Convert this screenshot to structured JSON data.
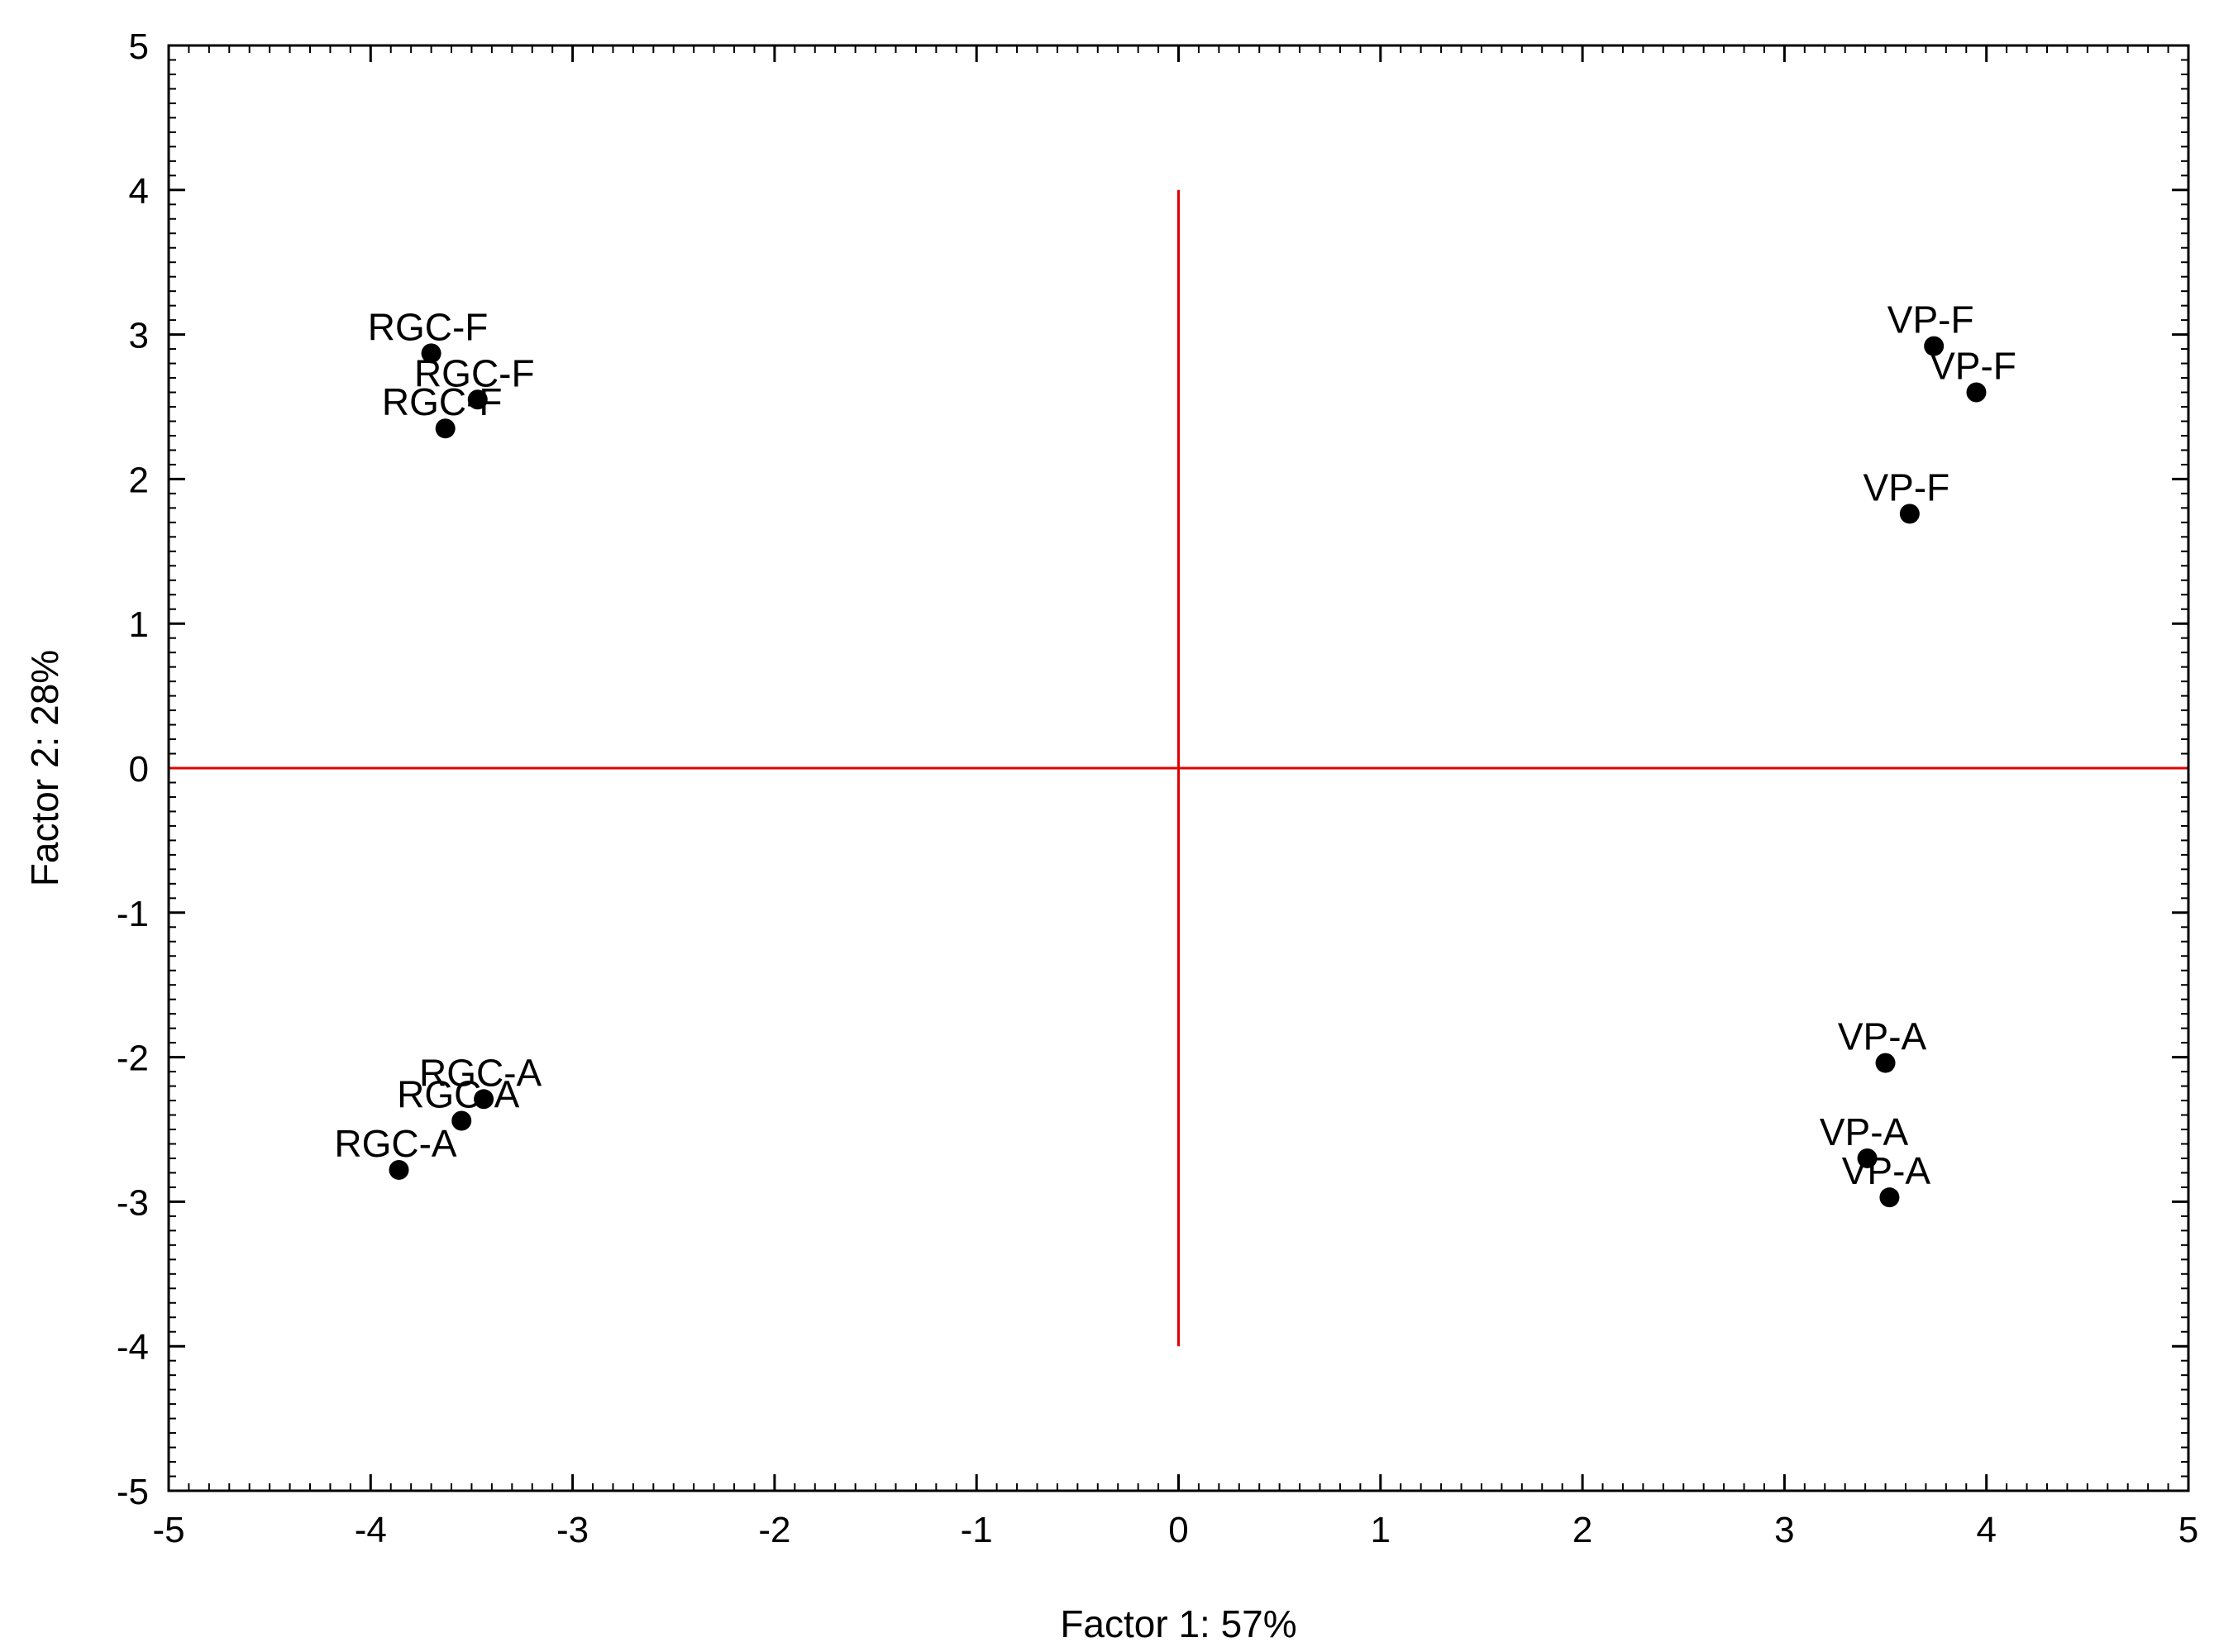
{
  "chart_data": {
    "type": "scatter",
    "xlabel": "Factor 1: 57%",
    "ylabel": "Factor 2: 28%",
    "xlim": [
      -5,
      5
    ],
    "ylim": [
      -5,
      5
    ],
    "xticks": [
      "-5",
      "-4",
      "-3",
      "-2",
      "-1",
      "0",
      "1",
      "2",
      "3",
      "4",
      "5"
    ],
    "yticks": [
      "-5",
      "-4",
      "-3",
      "-2",
      "-1",
      "0",
      "1",
      "2",
      "3",
      "4",
      "5"
    ],
    "grid": false,
    "reference_lines": {
      "color": "#e00000",
      "vertical": {
        "x": 0,
        "y_from": -4,
        "y_to": 4
      },
      "horizontal": {
        "y": 0,
        "x_from": -5,
        "x_to": 5
      }
    },
    "point_color": "#000000",
    "points": [
      {
        "label": "RGC-F",
        "x": -3.7,
        "y": 2.87
      },
      {
        "label": "RGC-F",
        "x": -3.47,
        "y": 2.55
      },
      {
        "label": "RGC-F",
        "x": -3.63,
        "y": 2.35
      },
      {
        "label": "RGC-A",
        "x": -3.44,
        "y": -2.29
      },
      {
        "label": "RGC-A",
        "x": -3.55,
        "y": -2.44
      },
      {
        "label": "RGC-A",
        "x": -3.86,
        "y": -2.78
      },
      {
        "label": "VP-F",
        "x": 3.74,
        "y": 2.92
      },
      {
        "label": "VP-F",
        "x": 3.95,
        "y": 2.6
      },
      {
        "label": "VP-F",
        "x": 3.62,
        "y": 1.76
      },
      {
        "label": "VP-A",
        "x": 3.5,
        "y": -2.04
      },
      {
        "label": "VP-A",
        "x": 3.41,
        "y": -2.7
      },
      {
        "label": "VP-A",
        "x": 3.52,
        "y": -2.97
      }
    ]
  }
}
